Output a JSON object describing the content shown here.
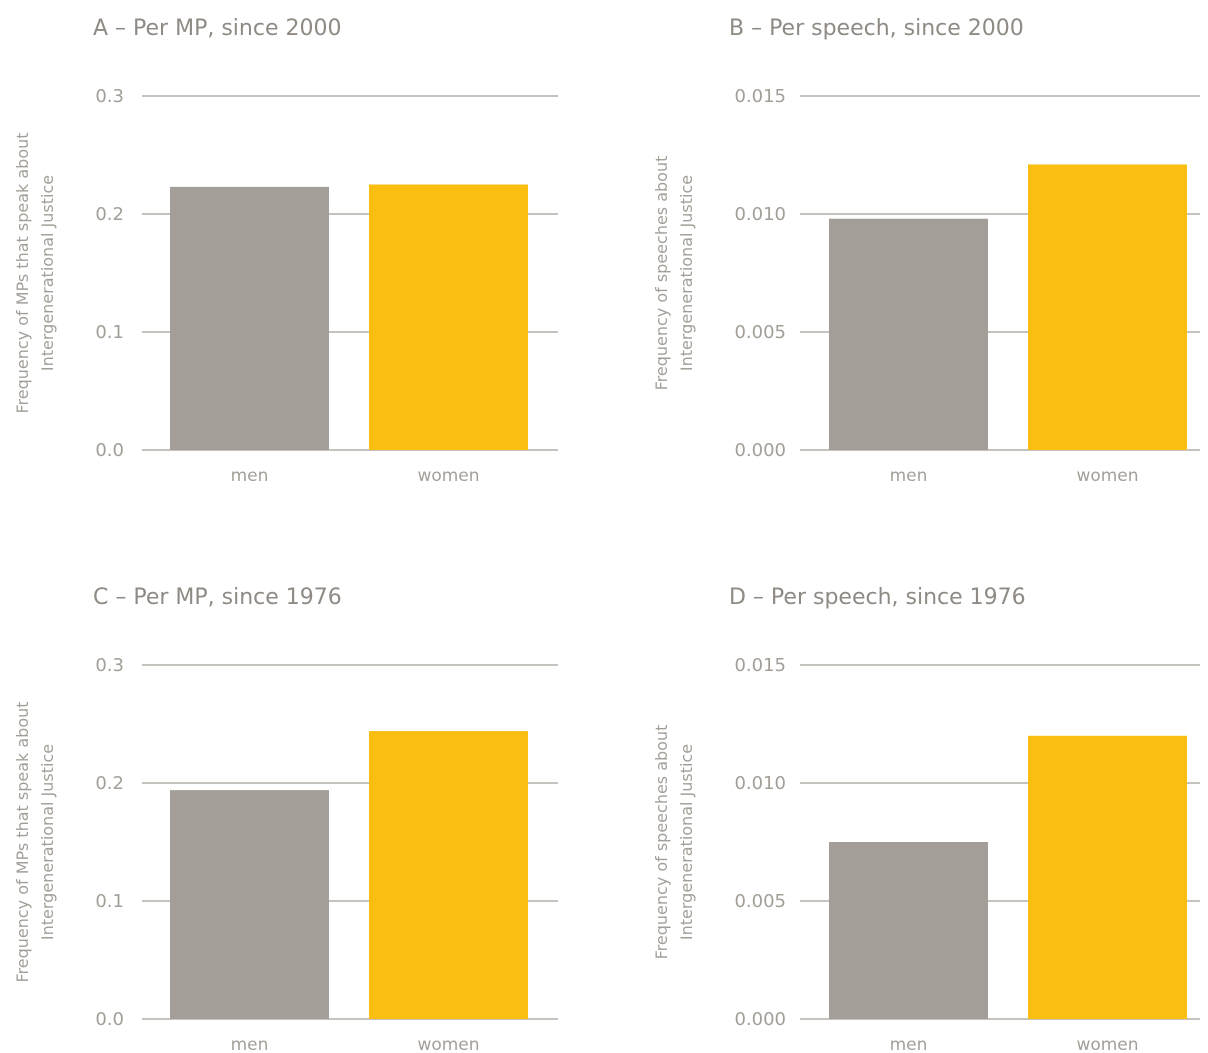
{
  "colors": {
    "men": "#a39f98",
    "women": "#f9be10",
    "text": "#a39f98",
    "title": "#8f8b84",
    "grid": "#a39f98",
    "background": "#ffffff"
  },
  "chart_data": [
    {
      "type": "bar",
      "title": "A – Per MP, since 2000",
      "ylabel": [
        "Frequency of MPs that speak about",
        "Intergenerational Justice"
      ],
      "xlabel": "",
      "categories": [
        "men",
        "women"
      ],
      "values": [
        0.223,
        0.225
      ],
      "ylim": [
        0,
        0.3
      ],
      "yticks": [
        "0.0",
        "0.1",
        "0.2",
        "0.3"
      ],
      "grid": true
    },
    {
      "type": "bar",
      "title": "B – Per speech, since 2000",
      "ylabel": [
        "Frequency of speeches about",
        "Intergenerational Justice"
      ],
      "xlabel": "",
      "categories": [
        "men",
        "women"
      ],
      "values": [
        0.0098,
        0.0121
      ],
      "ylim": [
        0,
        0.015
      ],
      "yticks": [
        "0.000",
        "0.005",
        "0.010",
        "0.015"
      ],
      "grid": true
    },
    {
      "type": "bar",
      "title": "C – Per MP, since 1976",
      "ylabel": [
        "Frequency of MPs that speak about",
        "Intergenerational Justice"
      ],
      "xlabel": "",
      "categories": [
        "men",
        "women"
      ],
      "values": [
        0.194,
        0.244
      ],
      "ylim": [
        0,
        0.3
      ],
      "yticks": [
        "0.0",
        "0.1",
        "0.2",
        "0.3"
      ],
      "grid": true
    },
    {
      "type": "bar",
      "title": "D – Per speech, since 1976",
      "ylabel": [
        "Frequency of speeches about",
        "Intergenerational Justice"
      ],
      "xlabel": "",
      "categories": [
        "men",
        "women"
      ],
      "values": [
        0.0075,
        0.012
      ],
      "ylim": [
        0,
        0.015
      ],
      "yticks": [
        "0.000",
        "0.005",
        "0.010",
        "0.015"
      ],
      "grid": true
    }
  ]
}
